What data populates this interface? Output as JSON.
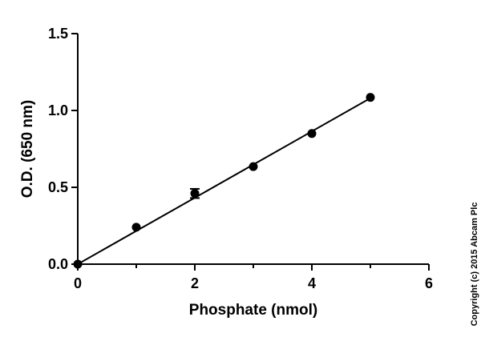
{
  "chart_data": {
    "type": "scatter",
    "title": "",
    "xlabel": "Phosphate (nmol)",
    "ylabel": "O.D. (650 nm)",
    "xlim": [
      0,
      6
    ],
    "ylim": [
      0,
      1.5
    ],
    "xticks": [
      "0",
      "2",
      "4",
      "6"
    ],
    "yticks": [
      "0.0",
      "0.5",
      "1.0",
      "1.5"
    ],
    "series": [
      {
        "x": [
          0,
          1,
          2,
          3,
          4,
          5
        ],
        "y": [
          0.0,
          0.24,
          0.46,
          0.635,
          0.85,
          1.085
        ],
        "error": [
          0,
          0,
          0.03,
          0,
          0,
          0
        ]
      }
    ],
    "fit_line": {
      "x": [
        0,
        5
      ],
      "y": [
        0.0,
        1.08
      ]
    },
    "grid": false,
    "legend": "none"
  },
  "copyright": "Copyright (c) 2015 Abcam Plc"
}
